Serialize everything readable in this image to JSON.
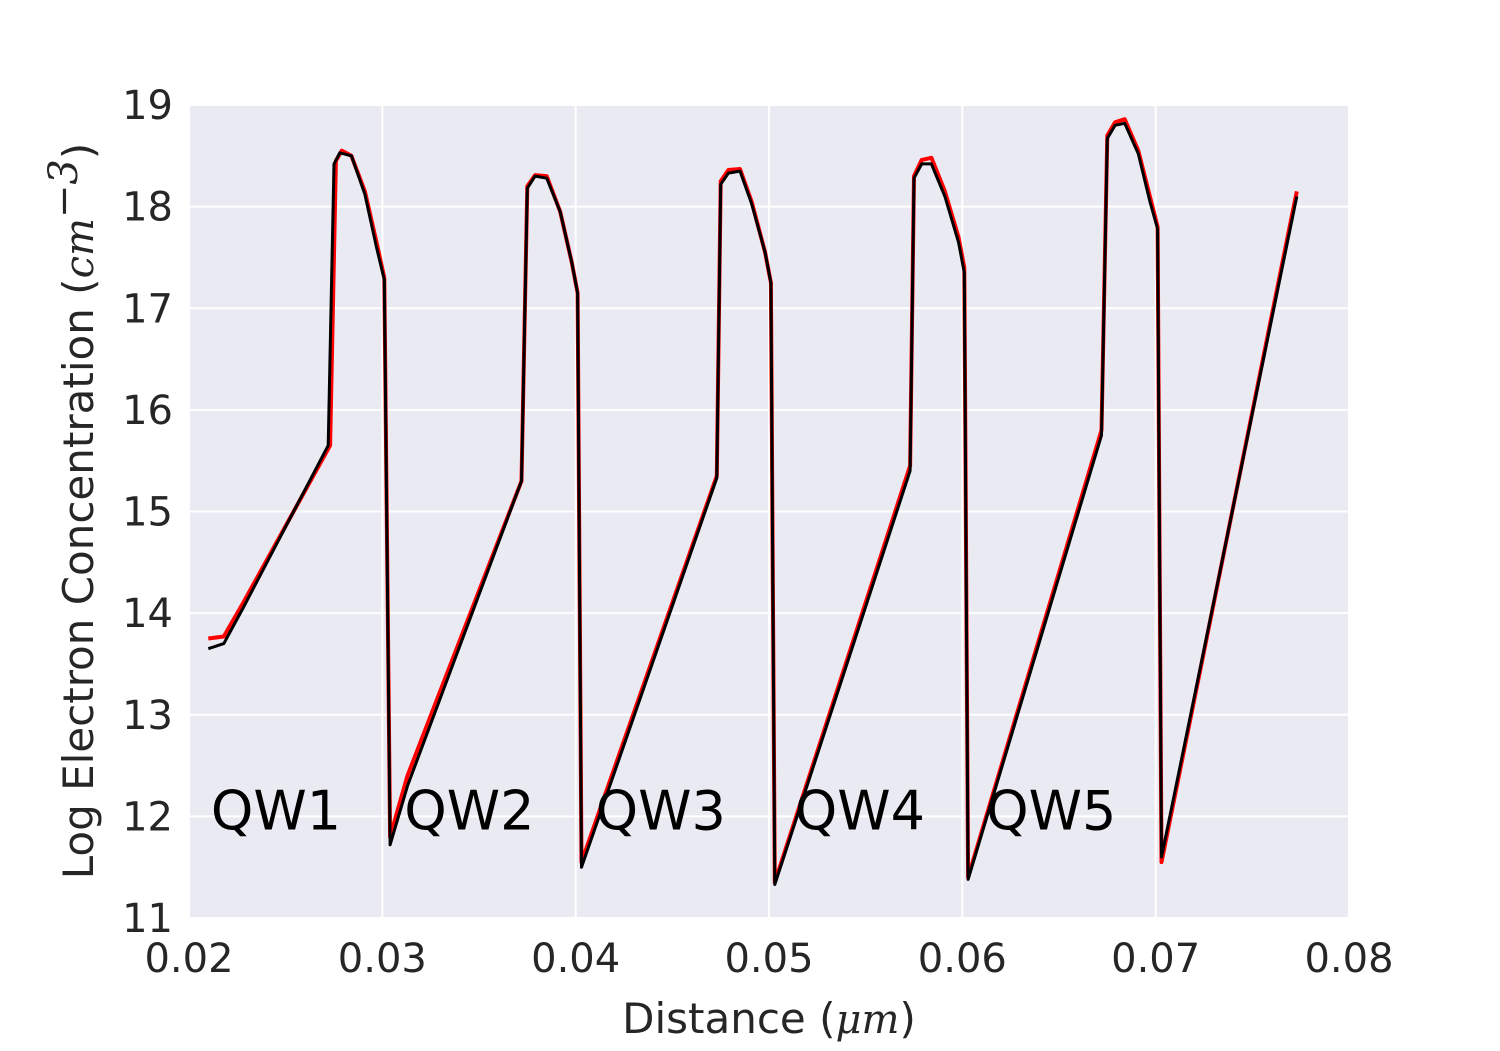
{
  "chart_data": {
    "type": "line",
    "title": "",
    "xlabel": "Distance (μm)",
    "ylabel": "Log Electron Concentration (cm⁻³)",
    "xlabel_text": "Distance",
    "xlabel_unit": "μm",
    "ylabel_text": "Log Electron Concentration",
    "ylabel_unit": "cm",
    "ylabel_unit_exp": "−3",
    "xlim": [
      0.02,
      0.08
    ],
    "ylim": [
      11,
      19
    ],
    "xticks": [
      "0.02",
      "0.03",
      "0.04",
      "0.05",
      "0.06",
      "0.07",
      "0.08"
    ],
    "yticks": [
      "11",
      "12",
      "13",
      "14",
      "15",
      "16",
      "17",
      "18",
      "19"
    ],
    "grid": true,
    "background_color": "#eaeaf2",
    "annotations": [
      {
        "text": "QW1",
        "x": 0.0245,
        "y": 12.05
      },
      {
        "text": "QW2",
        "x": 0.0345,
        "y": 12.05
      },
      {
        "text": "QW3",
        "x": 0.0444,
        "y": 12.05
      },
      {
        "text": "QW4",
        "x": 0.0547,
        "y": 12.05
      },
      {
        "text": "QW5",
        "x": 0.0646,
        "y": 12.05
      }
    ],
    "series": [
      {
        "color": "#ff0000",
        "x": [
          0.021,
          0.0218,
          0.0228,
          0.0273,
          0.0276,
          0.0279,
          0.0284,
          0.0291,
          0.0297,
          0.0301,
          0.0304,
          0.0313,
          0.0372,
          0.0375,
          0.0379,
          0.0385,
          0.0392,
          0.0398,
          0.0401,
          0.0403,
          0.0473,
          0.0475,
          0.0479,
          0.0485,
          0.0491,
          0.0498,
          0.0501,
          0.0503,
          0.0573,
          0.0575,
          0.0579,
          0.0584,
          0.0591,
          0.0598,
          0.0601,
          0.0603,
          0.0672,
          0.0675,
          0.0679,
          0.0684,
          0.0691,
          0.0697,
          0.0701,
          0.0703,
          0.0773
        ],
        "y": [
          13.75,
          13.77,
          14.1,
          15.65,
          18.45,
          18.55,
          18.5,
          18.15,
          17.65,
          17.3,
          11.8,
          12.4,
          15.3,
          18.2,
          18.31,
          18.3,
          17.95,
          17.45,
          17.15,
          11.55,
          15.35,
          18.25,
          18.36,
          18.37,
          18.05,
          17.55,
          17.25,
          11.35,
          15.45,
          18.3,
          18.46,
          18.48,
          18.15,
          17.7,
          17.4,
          11.4,
          15.8,
          18.7,
          18.83,
          18.86,
          18.55,
          18.1,
          17.8,
          11.55,
          18.15
        ]
      },
      {
        "color": "#000000",
        "x": [
          0.021,
          0.0218,
          0.0228,
          0.0272,
          0.0275,
          0.0278,
          0.0284,
          0.0291,
          0.0297,
          0.0301,
          0.0304,
          0.0313,
          0.0372,
          0.0375,
          0.0379,
          0.0385,
          0.0392,
          0.0398,
          0.0401,
          0.0403,
          0.0473,
          0.0475,
          0.0479,
          0.0485,
          0.0491,
          0.0498,
          0.0501,
          0.0503,
          0.0573,
          0.0575,
          0.0579,
          0.0584,
          0.0591,
          0.0598,
          0.0601,
          0.0603,
          0.0672,
          0.0675,
          0.0679,
          0.0684,
          0.0691,
          0.0697,
          0.0701,
          0.0703,
          0.0773
        ],
        "y": [
          13.65,
          13.7,
          14.05,
          15.65,
          18.42,
          18.53,
          18.5,
          18.12,
          17.6,
          17.28,
          11.72,
          12.3,
          15.3,
          18.18,
          18.3,
          18.28,
          17.95,
          17.45,
          17.15,
          11.5,
          15.33,
          18.22,
          18.33,
          18.35,
          18.03,
          17.55,
          17.25,
          11.33,
          15.4,
          18.28,
          18.42,
          18.42,
          18.1,
          17.65,
          17.35,
          11.38,
          15.75,
          18.67,
          18.8,
          18.82,
          18.52,
          18.05,
          17.78,
          11.6,
          18.1
        ]
      }
    ]
  }
}
